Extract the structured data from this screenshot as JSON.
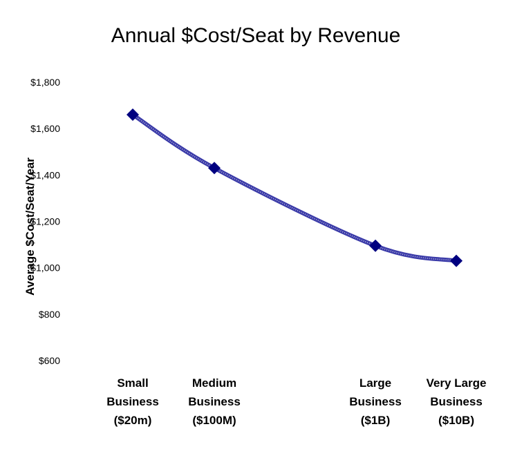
{
  "chart_data": {
    "type": "line",
    "title": "Annual $Cost/Seat by Revenue",
    "xlabel": "",
    "ylabel": "Average $Cost/Seat/Year",
    "ylim": [
      600,
      1800
    ],
    "yticks": [
      600,
      800,
      1000,
      1200,
      1400,
      1600,
      1800
    ],
    "ytick_labels": [
      "$600",
      "$800",
      "$1,000",
      "$1,200",
      "$1,400",
      "$1,600",
      "$1,800"
    ],
    "categories": [
      [
        "Small",
        "Business",
        "($20m)"
      ],
      [
        "Medium",
        "Business",
        "($100M)"
      ],
      [
        "Large",
        "Business",
        "($1B)"
      ],
      [
        "Very Large",
        "Business",
        "($10B)"
      ]
    ],
    "series": [
      {
        "name": "Average $Cost/Seat/Year",
        "values": [
          1660,
          1430,
          1095,
          1030
        ],
        "color": "#000080"
      }
    ],
    "grid": false,
    "legend": "none"
  }
}
